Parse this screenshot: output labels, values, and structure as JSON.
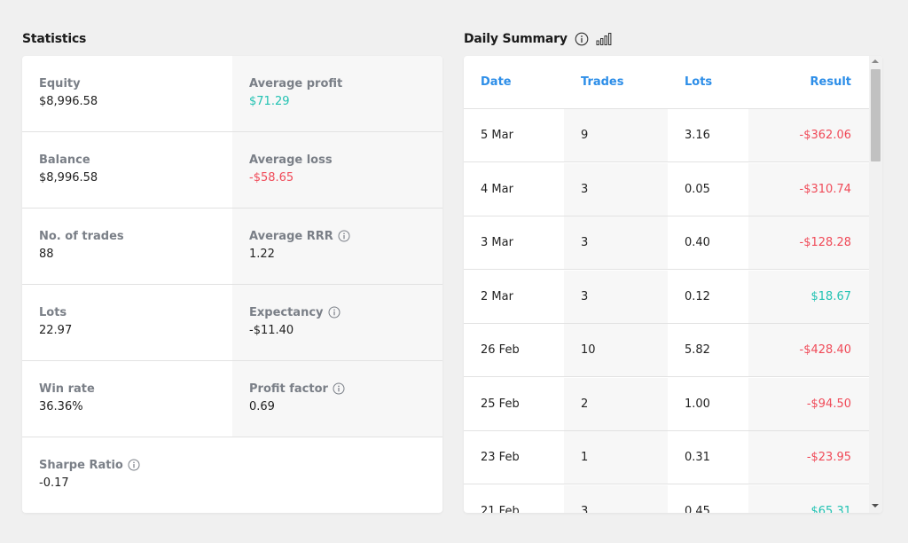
{
  "statistics": {
    "title": "Statistics",
    "rows": [
      {
        "left": {
          "label": "Equity",
          "value": "$8,996.58",
          "info": false
        },
        "right": {
          "label": "Average profit",
          "value": "$71.29",
          "info": false,
          "tone": "pos"
        }
      },
      {
        "left": {
          "label": "Balance",
          "value": "$8,996.58",
          "info": false
        },
        "right": {
          "label": "Average loss",
          "value": "-$58.65",
          "info": false,
          "tone": "neg"
        }
      },
      {
        "left": {
          "label": "No. of trades",
          "value": "88",
          "info": false
        },
        "right": {
          "label": "Average RRR",
          "value": "1.22",
          "info": true,
          "tone": ""
        }
      },
      {
        "left": {
          "label": "Lots",
          "value": "22.97",
          "info": false
        },
        "right": {
          "label": "Expectancy",
          "value": "-$11.40",
          "info": true,
          "tone": ""
        }
      },
      {
        "left": {
          "label": "Win rate",
          "value": "36.36%",
          "info": false
        },
        "right": {
          "label": "Profit factor",
          "value": "0.69",
          "info": true,
          "tone": ""
        }
      },
      {
        "left": {
          "label": "Sharpe Ratio",
          "value": "-0.17",
          "info": true
        },
        "right": null
      }
    ]
  },
  "daily_summary": {
    "title": "Daily Summary",
    "icons": [
      "info-icon",
      "bar-chart-icon"
    ],
    "columns": [
      "Date",
      "Trades",
      "Lots",
      "Result"
    ],
    "rows": [
      {
        "date": "5 Mar",
        "trades": "9",
        "lots": "3.16",
        "result": "-$362.06",
        "tone": "neg"
      },
      {
        "date": "4 Mar",
        "trades": "3",
        "lots": "0.05",
        "result": "-$310.74",
        "tone": "neg"
      },
      {
        "date": "3 Mar",
        "trades": "3",
        "lots": "0.40",
        "result": "-$128.28",
        "tone": "neg"
      },
      {
        "date": "2 Mar",
        "trades": "3",
        "lots": "0.12",
        "result": "$18.67",
        "tone": "pos"
      },
      {
        "date": "26 Feb",
        "trades": "10",
        "lots": "5.82",
        "result": "-$428.40",
        "tone": "neg"
      },
      {
        "date": "25 Feb",
        "trades": "2",
        "lots": "1.00",
        "result": "-$94.50",
        "tone": "neg"
      },
      {
        "date": "23 Feb",
        "trades": "1",
        "lots": "0.31",
        "result": "-$23.95",
        "tone": "neg"
      },
      {
        "date": "21 Feb",
        "trades": "3",
        "lots": "0.45",
        "result": "$65.31",
        "tone": "pos"
      }
    ]
  },
  "colors": {
    "accent": "#2d8ee8",
    "negative": "#f04a58",
    "positive": "#22c2b2",
    "label": "#7a7f87"
  }
}
